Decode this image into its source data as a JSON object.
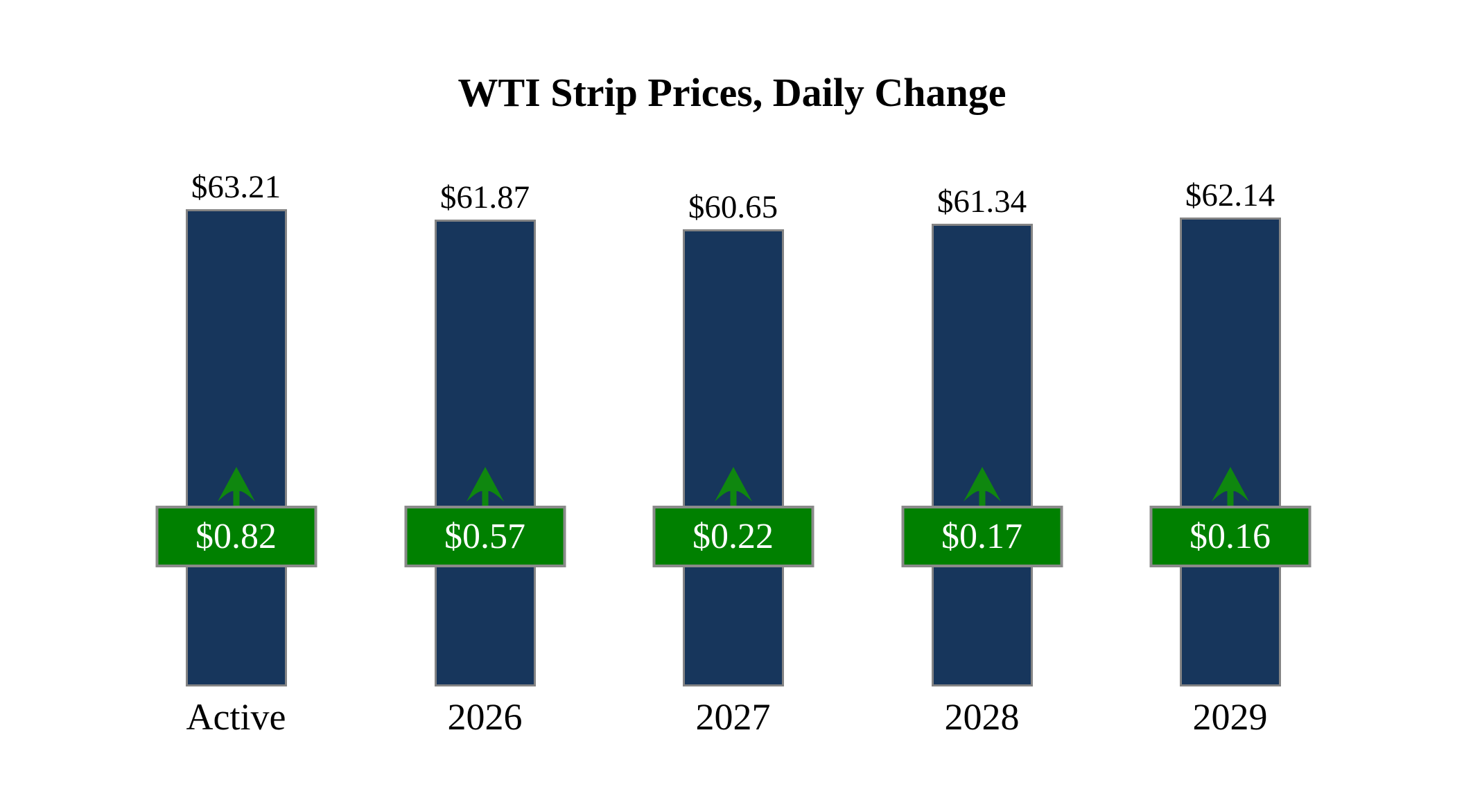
{
  "title": "WTI Strip Prices, Daily Change",
  "colors": {
    "bar_fill": "#17365c",
    "bar_border": "#848484",
    "badge_fill": "#008000",
    "badge_border": "#8a8a8a",
    "badge_text": "#ffffff",
    "arrow_green": "#0f870f",
    "label_text": "#000000",
    "background": "#ffffff"
  },
  "chart_data": {
    "type": "bar",
    "title": "WTI Strip Prices, Daily Change",
    "categories": [
      "Active",
      "2026",
      "2027",
      "2028",
      "2029"
    ],
    "series": [
      {
        "name": "Strip Price",
        "values": [
          63.21,
          61.87,
          60.65,
          61.34,
          62.14
        ],
        "labels": [
          "$63.21",
          "$61.87",
          "$60.65",
          "$61.34",
          "$62.14"
        ]
      },
      {
        "name": "Daily Change",
        "values": [
          0.82,
          0.57,
          0.22,
          0.17,
          0.16
        ],
        "labels": [
          "$0.82",
          "$0.57",
          "$0.22",
          "$0.17",
          "$0.16"
        ],
        "direction": "up"
      }
    ],
    "xlabel": "",
    "ylabel": "",
    "legend": "none",
    "grid": false,
    "axes_hidden": true,
    "value_labels_position": "above-bar",
    "change_badges_position": "overlaid-aligned-row"
  }
}
